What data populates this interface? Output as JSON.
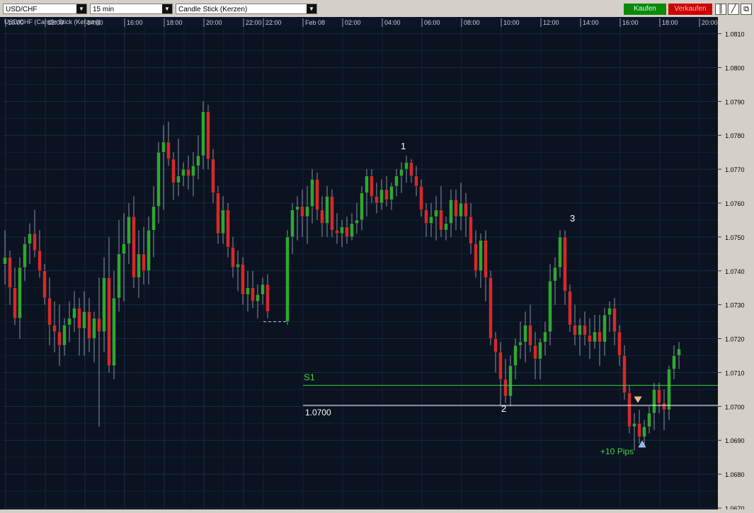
{
  "toolbar": {
    "symbol": "USD/CHF",
    "timeframe": "15 min",
    "chart_type": "Candle Stick (Kerzen)",
    "buy_label": "Kaufen",
    "sell_label": "Verkaufen"
  },
  "chart_title": "USD/CHF (Candle Stick (Kerzen))",
  "chart_data": {
    "type": "candlestick",
    "x_tick_labels": [
      "10:00",
      "12:00",
      "14:00",
      "16:00",
      "18:00",
      "20:00",
      "22:00",
      "22:00",
      "Feb 08",
      "02:00",
      "04:00",
      "06:00",
      "08:00",
      "10:00",
      "12:00",
      "14:00",
      "16:00",
      "18:00",
      "20:00"
    ],
    "y_tick_labels": [
      "1.0810",
      "1.0800",
      "1.0790",
      "1.0780",
      "1.0770",
      "1.0760",
      "1.0750",
      "1.0740",
      "1.0730",
      "1.0720",
      "1.0710",
      "1.0700",
      "1.0690",
      "1.0680",
      "1.0670"
    ],
    "ylim": [
      1.067,
      1.0812
    ],
    "up_color": "#2fa82f",
    "down_color": "#d42a2a",
    "candles_seg1": [
      [
        1.0742,
        1.0752,
        1.0736,
        1.0744
      ],
      [
        1.0744,
        1.0746,
        1.073,
        1.0735
      ],
      [
        1.0735,
        1.0741,
        1.0724,
        1.0726
      ],
      [
        1.0726,
        1.0744,
        1.072,
        1.0741
      ],
      [
        1.0741,
        1.075,
        1.0737,
        1.0748
      ],
      [
        1.0748,
        1.0754,
        1.0742,
        1.0751
      ],
      [
        1.0751,
        1.0758,
        1.0744,
        1.0746
      ],
      [
        1.0746,
        1.0752,
        1.0738,
        1.074
      ],
      [
        1.074,
        1.0742,
        1.073,
        1.0732
      ],
      [
        1.0732,
        1.0738,
        1.0718,
        1.0724
      ],
      [
        1.0724,
        1.0731,
        1.0716,
        1.0722
      ],
      [
        1.0722,
        1.073,
        1.0712,
        1.0718
      ],
      [
        1.0718,
        1.0726,
        1.0715,
        1.0724
      ],
      [
        1.0724,
        1.0731,
        1.0719,
        1.0726
      ],
      [
        1.0726,
        1.0734,
        1.0722,
        1.0729
      ],
      [
        1.0729,
        1.0732,
        1.0715,
        1.0723
      ],
      [
        1.0723,
        1.0734,
        1.0715,
        1.0728
      ],
      [
        1.0728,
        1.0732,
        1.0716,
        1.072
      ],
      [
        1.072,
        1.0728,
        1.0713,
        1.0726
      ],
      [
        1.0726,
        1.0738,
        1.0694,
        1.0722
      ],
      [
        1.0722,
        1.0744,
        1.0716,
        1.0738
      ],
      [
        1.0738,
        1.075,
        1.071,
        1.0712
      ],
      [
        1.0712,
        1.074,
        1.0708,
        1.0732
      ],
      [
        1.0732,
        1.0755,
        1.0728,
        1.0745
      ],
      [
        1.0745,
        1.0757,
        1.0731,
        1.0748
      ],
      [
        1.0748,
        1.076,
        1.0742,
        1.0756
      ],
      [
        1.0756,
        1.0762,
        1.0735,
        1.0738
      ],
      [
        1.0738,
        1.0752,
        1.0732,
        1.0745
      ],
      [
        1.0745,
        1.0753,
        1.0736,
        1.074
      ],
      [
        1.074,
        1.0756,
        1.0736,
        1.0752
      ],
      [
        1.0752,
        1.0765,
        1.0744,
        1.0759
      ],
      [
        1.0759,
        1.0778,
        1.0754,
        1.0775
      ],
      [
        1.0775,
        1.0783,
        1.0758,
        1.0778
      ],
      [
        1.0778,
        1.0784,
        1.0771,
        1.0773
      ],
      [
        1.0773,
        1.0775,
        1.0761,
        1.0766
      ],
      [
        1.0766,
        1.0779,
        1.0762,
        1.0768
      ],
      [
        1.0768,
        1.0772,
        1.0765,
        1.077
      ],
      [
        1.077,
        1.0774,
        1.0764,
        1.0768
      ],
      [
        1.0768,
        1.0775,
        1.0762,
        1.0771
      ],
      [
        1.0771,
        1.078,
        1.0767,
        1.0774
      ],
      [
        1.0774,
        1.079,
        1.077,
        1.0787
      ],
      [
        1.0787,
        1.0789,
        1.077,
        1.0773
      ],
      [
        1.0773,
        1.0776,
        1.076,
        1.0763
      ],
      [
        1.0763,
        1.0765,
        1.0748,
        1.0751
      ],
      [
        1.0751,
        1.0762,
        1.0748,
        1.0758
      ],
      [
        1.0758,
        1.076,
        1.0744,
        1.0747
      ],
      [
        1.0747,
        1.075,
        1.0738,
        1.0741
      ],
      [
        1.0741,
        1.0746,
        1.0734,
        1.0742
      ],
      [
        1.0742,
        1.0744,
        1.073,
        1.0733
      ],
      [
        1.0733,
        1.074,
        1.0728,
        1.0735
      ],
      [
        1.0735,
        1.074,
        1.0729,
        1.0731
      ],
      [
        1.0731,
        1.0736,
        1.0726,
        1.0733
      ],
      [
        1.0733,
        1.0738,
        1.073,
        1.0736
      ],
      [
        1.0736,
        1.0739,
        1.0726,
        1.0728
      ]
    ],
    "gap_line_value": 1.0725,
    "candles_seg2": [
      [
        1.0725,
        1.0752,
        1.0724,
        1.075
      ],
      [
        1.075,
        1.076,
        1.0745,
        1.0758
      ],
      [
        1.0758,
        1.0762,
        1.0749,
        1.0759
      ],
      [
        1.0759,
        1.0764,
        1.075,
        1.0756
      ],
      [
        1.0756,
        1.0765,
        1.0748,
        1.0759
      ],
      [
        1.0759,
        1.077,
        1.0754,
        1.0767
      ],
      [
        1.0767,
        1.0769,
        1.0755,
        1.0758
      ],
      [
        1.0758,
        1.0762,
        1.075,
        1.0754
      ],
      [
        1.0754,
        1.0765,
        1.075,
        1.0762
      ],
      [
        1.0762,
        1.0764,
        1.075,
        1.0752
      ],
      [
        1.0752,
        1.0757,
        1.0748,
        1.0751
      ],
      [
        1.0751,
        1.0755,
        1.0747,
        1.0753
      ],
      [
        1.0753,
        1.0756,
        1.0748,
        1.075
      ],
      [
        1.075,
        1.0757,
        1.0749,
        1.0754
      ],
      [
        1.0754,
        1.076,
        1.0751,
        1.0755
      ],
      [
        1.0755,
        1.0765,
        1.0752,
        1.0763
      ],
      [
        1.0763,
        1.077,
        1.0756,
        1.0768
      ],
      [
        1.0768,
        1.077,
        1.076,
        1.0762
      ],
      [
        1.0762,
        1.0766,
        1.0757,
        1.076
      ],
      [
        1.076,
        1.0767,
        1.0758,
        1.0764
      ],
      [
        1.0764,
        1.0768,
        1.0759,
        1.0761
      ],
      [
        1.0761,
        1.0766,
        1.0758,
        1.0765
      ],
      [
        1.0765,
        1.077,
        1.0762,
        1.0768
      ],
      [
        1.0768,
        1.0772,
        1.0763,
        1.077
      ],
      [
        1.077,
        1.0774,
        1.0766,
        1.0772
      ],
      [
        1.0772,
        1.0773,
        1.0766,
        1.0768
      ],
      [
        1.0768,
        1.0771,
        1.0762,
        1.0765
      ],
      [
        1.0765,
        1.0767,
        1.0756,
        1.0758
      ],
      [
        1.0758,
        1.076,
        1.075,
        1.0754
      ],
      [
        1.0754,
        1.076,
        1.075,
        1.0756
      ],
      [
        1.0756,
        1.0762,
        1.0749,
        1.0758
      ],
      [
        1.0758,
        1.0765,
        1.075,
        1.0752
      ],
      [
        1.0752,
        1.0756,
        1.0749,
        1.0754
      ],
      [
        1.0754,
        1.0764,
        1.075,
        1.0761
      ],
      [
        1.0761,
        1.0764,
        1.0752,
        1.0756
      ],
      [
        1.0756,
        1.0766,
        1.0752,
        1.076
      ],
      [
        1.076,
        1.0763,
        1.075,
        1.0756
      ],
      [
        1.0756,
        1.076,
        1.0745,
        1.0748
      ],
      [
        1.0748,
        1.0752,
        1.0738,
        1.074
      ],
      [
        1.074,
        1.0751,
        1.0735,
        1.0749
      ],
      [
        1.0749,
        1.0752,
        1.0731,
        1.0738
      ],
      [
        1.0738,
        1.074,
        1.0718,
        1.072
      ],
      [
        1.072,
        1.0722,
        1.071,
        1.0716
      ],
      [
        1.0716,
        1.0719,
        1.07,
        1.0708
      ],
      [
        1.0708,
        1.0714,
        1.0701,
        1.0703
      ],
      [
        1.0703,
        1.0715,
        1.07,
        1.0712
      ],
      [
        1.0712,
        1.072,
        1.0708,
        1.0718
      ],
      [
        1.0718,
        1.0725,
        1.0714,
        1.0719
      ],
      [
        1.0719,
        1.0728,
        1.0713,
        1.0724
      ],
      [
        1.0724,
        1.073,
        1.0716,
        1.0718
      ],
      [
        1.0718,
        1.0722,
        1.0708,
        1.0714
      ],
      [
        1.0714,
        1.072,
        1.0708,
        1.0719
      ],
      [
        1.0719,
        1.0725,
        1.0715,
        1.0722
      ],
      [
        1.0722,
        1.0742,
        1.0718,
        1.0737
      ],
      [
        1.0737,
        1.0744,
        1.073,
        1.0741
      ],
      [
        1.0741,
        1.0752,
        1.0738,
        1.075
      ],
      [
        1.075,
        1.0752,
        1.073,
        1.0734
      ],
      [
        1.0734,
        1.0736,
        1.0722,
        1.0724
      ],
      [
        1.0724,
        1.073,
        1.0718,
        1.0721
      ],
      [
        1.0721,
        1.0726,
        1.0715,
        1.0724
      ],
      [
        1.0724,
        1.0728,
        1.0718,
        1.0721
      ],
      [
        1.0721,
        1.0726,
        1.0714,
        1.0719
      ],
      [
        1.0719,
        1.0727,
        1.0717,
        1.0722
      ],
      [
        1.0722,
        1.0727,
        1.0712,
        1.0719
      ],
      [
        1.0719,
        1.0729,
        1.0715,
        1.0727
      ],
      [
        1.0727,
        1.0731,
        1.0722,
        1.0729
      ],
      [
        1.0729,
        1.0732,
        1.0718,
        1.0722
      ],
      [
        1.0722,
        1.0724,
        1.0712,
        1.0715
      ],
      [
        1.0715,
        1.0718,
        1.0702,
        1.0704
      ],
      [
        1.0704,
        1.0706,
        1.0692,
        1.0694
      ],
      [
        1.0694,
        1.0698,
        1.0687,
        1.0695
      ],
      [
        1.0695,
        1.0699,
        1.0689,
        1.0691
      ],
      [
        1.0691,
        1.0696,
        1.0688,
        1.0694
      ],
      [
        1.0694,
        1.07,
        1.0692,
        1.0698
      ],
      [
        1.0698,
        1.0707,
        1.0693,
        1.0705
      ],
      [
        1.0705,
        1.0707,
        1.0698,
        1.0701
      ],
      [
        1.0701,
        1.0705,
        1.0693,
        1.0699
      ],
      [
        1.0699,
        1.0712,
        1.0696,
        1.0711
      ],
      [
        1.0711,
        1.0718,
        1.0708,
        1.0715
      ],
      [
        1.0715,
        1.0719,
        1.0711,
        1.0717
      ]
    ]
  },
  "annotations": {
    "point_1": "1",
    "point_2": "2",
    "point_3": "3",
    "s1_label": "S1",
    "s1_value": 1.07062,
    "level_label": "1.0700",
    "level_value": 1.07003,
    "pips_label": "+10 Pips",
    "sell_marker_value": 1.0702,
    "buy_marker_value": 1.0689
  }
}
